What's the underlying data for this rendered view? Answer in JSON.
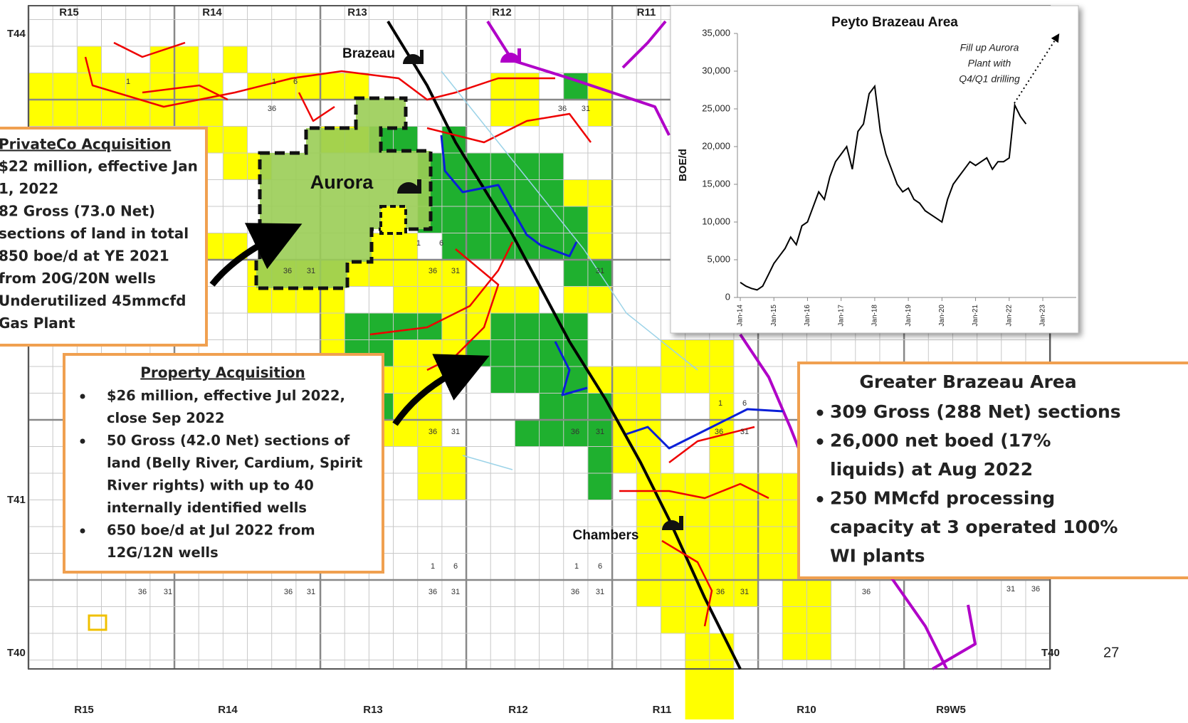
{
  "map": {
    "range_labels_top": [
      "R15",
      "R14",
      "R13",
      "R12",
      "R11"
    ],
    "range_labels_bottom": [
      "R15",
      "R14",
      "R13",
      "R12",
      "R11",
      "R10",
      "R9W5"
    ],
    "township_labels": [
      "T44",
      "T41",
      "T40",
      "T40"
    ],
    "places": [
      "Brazeau",
      "Aurora",
      "Chambers"
    ],
    "section_numbers": [
      "1",
      "1",
      "6",
      "36",
      "36",
      "31",
      "36",
      "31",
      "36",
      "31",
      "1",
      "6",
      "36",
      "31",
      "36",
      "31",
      "31",
      "36",
      "1",
      "6",
      "36",
      "31",
      "36",
      "31",
      "36",
      "31",
      "1",
      "6",
      "1",
      "6",
      "36",
      "31",
      "36",
      "31",
      "36",
      "31",
      "36",
      "31"
    ],
    "page_number": "27"
  },
  "callouts": {
    "privateco": {
      "title": "PrivateCo Acquisition",
      "lines": [
        "$22 million, effective Jan",
        "1, 2022",
        "82 Gross (73.0 Net)",
        "sections of land in total",
        "850 boe/d at YE 2021",
        "from 20G/20N wells",
        "Underutilized 45mmcfd",
        "Gas Plant"
      ]
    },
    "property": {
      "title": "Property Acquisition",
      "bullets": [
        [
          "$26 million, effective Jul 2022,",
          "close Sep 2022"
        ],
        [
          "50 Gross (42.0 Net) sections of",
          "land (Belly River, Cardium, Spirit",
          "River rights) with up to 40",
          "internally identified wells"
        ],
        [
          "650 boe/d at Jul 2022 from",
          "12G/12N wells"
        ]
      ]
    },
    "greater": {
      "title": "Greater Brazeau Area",
      "bullets": [
        [
          "309 Gross (288 Net) sections"
        ],
        [
          "26,000 net boed (17%",
          "liquids) at Aug 2022"
        ],
        [
          "250 MMcfd processing",
          "capacity at 3 operated 100%",
          "WI plants"
        ]
      ]
    }
  },
  "chart_data": {
    "type": "line",
    "title": "Peyto Brazeau Area",
    "y_label": "BOE/d",
    "annotation": [
      "Fill up Aurora",
      "Plant with",
      "Q4/Q1 drilling"
    ],
    "x": [
      "Jan-14",
      "Mar-14",
      "May-14",
      "Jul-14",
      "Sep-14",
      "Nov-14",
      "Jan-15",
      "Mar-15",
      "May-15",
      "Jul-15",
      "Sep-15",
      "Nov-15",
      "Jan-16",
      "Mar-16",
      "May-16",
      "Jul-16",
      "Sep-16",
      "Nov-16",
      "Jan-17",
      "Mar-17",
      "May-17",
      "Jul-17",
      "Sep-17",
      "Nov-17",
      "Jan-18",
      "Mar-18",
      "May-18",
      "Jul-18",
      "Sep-18",
      "Nov-18",
      "Jan-19",
      "Mar-19",
      "May-19",
      "Jul-19",
      "Sep-19",
      "Nov-19",
      "Jan-20",
      "Mar-20",
      "May-20",
      "Jul-20",
      "Sep-20",
      "Nov-20",
      "Jan-21",
      "Mar-21",
      "May-21",
      "Jul-21",
      "Sep-21",
      "Nov-21",
      "Jan-22",
      "Mar-22",
      "May-22",
      "Jul-22"
    ],
    "series": [
      {
        "name": "BOE/d",
        "color": "#000000",
        "values": [
          2000,
          1500,
          1200,
          1000,
          1500,
          3000,
          4500,
          5500,
          6500,
          8000,
          7000,
          9500,
          10000,
          12000,
          14000,
          13000,
          16000,
          18000,
          19000,
          20000,
          17000,
          22000,
          23000,
          27000,
          28000,
          22000,
          19000,
          17000,
          15000,
          14000,
          14500,
          13000,
          12500,
          11500,
          11000,
          10500,
          10000,
          13000,
          15000,
          16000,
          17000,
          18000,
          17500,
          18000,
          18500,
          17000,
          18000,
          18000,
          18500,
          25500,
          24000,
          23000
        ]
      }
    ],
    "xlim": [
      "Jan-14",
      "Jan-23"
    ],
    "xticks": [
      "Jan-14",
      "Jan-15",
      "Jan-16",
      "Jan-17",
      "Jan-18",
      "Jan-19",
      "Jan-20",
      "Jan-21",
      "Jan-22",
      "Jan-23"
    ],
    "ylim": [
      0,
      35000
    ],
    "yticks": [
      0,
      {
        "value": 5000,
        "label": "5,000"
      },
      {
        "value": 10000,
        "label": "10,000"
      },
      {
        "value": 15000,
        "label": "15,000"
      },
      {
        "value": 20000,
        "label": "20,000"
      },
      {
        "value": 25000,
        "label": "25,000"
      },
      {
        "value": 30000,
        "label": "30,000"
      },
      {
        "value": 35000,
        "label": "35,000"
      }
    ],
    "grid": false
  }
}
